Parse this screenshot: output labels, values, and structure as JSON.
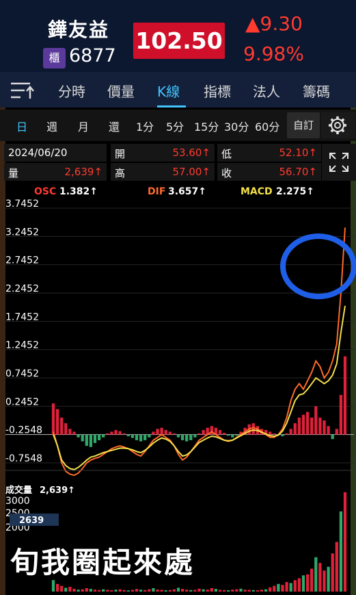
{
  "header": {
    "stock_name": "鏵友益",
    "market_badge": "櫃",
    "stock_code": "6877",
    "price": "102.50",
    "change": "▲9.30",
    "change_pct": "9.98%"
  },
  "tabs": [
    "分時",
    "價量",
    "K線",
    "指標",
    "法人",
    "籌碼"
  ],
  "active_tab": "K線",
  "periods": [
    "日",
    "週",
    "月",
    "還",
    "1分",
    "5分",
    "15分",
    "30分",
    "60分"
  ],
  "active_period": "日",
  "custom_label": "自訂",
  "info": {
    "date": "2024/06/20",
    "open_label": "開",
    "open_value": "53.60↑",
    "low_label": "低",
    "low_value": "52.10↑",
    "volume_label": "量",
    "volume_value": "2,639↑",
    "high_label": "高",
    "high_value": "57.00↑",
    "close_label": "收",
    "close_value": "56.70↑"
  },
  "legend": {
    "osc_label": "OSC",
    "osc_value": "1.382↑",
    "dif_label": "DIF",
    "dif_value": "3.657↑",
    "macd_label": "MACD",
    "macd_value": "2.275↑"
  },
  "colors": {
    "osc": "#ff3b30",
    "dif": "#ff6a2a",
    "macd": "#f3e04a",
    "hist_up": "#e0213a",
    "hist_down": "#2fa86a",
    "accent": "#41c5ff"
  },
  "chart_data": {
    "type": "bar",
    "y_ticks": [
      "3.7452",
      "3.2452",
      "2.7452",
      "2.2452",
      "1.7452",
      "1.2452",
      "0.7452",
      "0.2452",
      "-0.2548",
      "-0.7548"
    ],
    "ylim": [
      -0.7548,
      3.7452
    ],
    "series": [
      {
        "name": "OSC",
        "values": [
          0.55,
          0.45,
          0.3,
          0.2,
          0.1,
          0.05,
          -0.05,
          -0.12,
          -0.2,
          -0.22,
          -0.15,
          -0.1,
          -0.05,
          0.02,
          0.05,
          0.08,
          0.06,
          0.02,
          -0.03,
          -0.06,
          -0.1,
          -0.12,
          -0.1,
          -0.05,
          0.05,
          0.1,
          0.12,
          0.08,
          0.05,
          0.02,
          -0.05,
          -0.1,
          -0.12,
          -0.1,
          -0.05,
          0.02,
          0.08,
          0.12,
          0.15,
          0.12,
          0.08,
          0.03,
          -0.02,
          -0.05,
          -0.02,
          0.05,
          0.12,
          0.18,
          0.2,
          0.15,
          0.1,
          0.08,
          0.05,
          0.02,
          0.0,
          -0.03,
          0.02,
          0.1,
          0.2,
          0.3,
          0.35,
          0.4,
          0.3,
          0.5,
          0.3,
          0.25,
          0.15,
          -0.08,
          0.1,
          0.7,
          1.382
        ]
      },
      {
        "name": "DIF",
        "values": [
          0.05,
          -0.2,
          -0.5,
          -0.65,
          -0.7,
          -0.72,
          -0.68,
          -0.6,
          -0.5,
          -0.45,
          -0.42,
          -0.4,
          -0.35,
          -0.3,
          -0.25,
          -0.22,
          -0.2,
          -0.22,
          -0.25,
          -0.3,
          -0.35,
          -0.38,
          -0.3,
          -0.2,
          -0.1,
          -0.05,
          0.0,
          -0.05,
          -0.1,
          -0.2,
          -0.35,
          -0.45,
          -0.4,
          -0.3,
          -0.2,
          -0.1,
          -0.05,
          0.0,
          0.05,
          0.0,
          -0.05,
          -0.1,
          -0.12,
          -0.1,
          -0.05,
          0.0,
          0.05,
          0.1,
          0.12,
          0.1,
          0.05,
          0.0,
          -0.05,
          -0.05,
          0.0,
          0.1,
          0.3,
          0.6,
          0.8,
          0.9,
          0.8,
          0.95,
          1.1,
          1.3,
          1.2,
          1.0,
          1.1,
          1.3,
          1.6,
          2.5,
          3.657
        ]
      },
      {
        "name": "MACD",
        "values": [
          0.0,
          -0.2,
          -0.45,
          -0.55,
          -0.6,
          -0.62,
          -0.58,
          -0.52,
          -0.45,
          -0.4,
          -0.38,
          -0.35,
          -0.32,
          -0.3,
          -0.28,
          -0.26,
          -0.24,
          -0.24,
          -0.25,
          -0.27,
          -0.3,
          -0.32,
          -0.28,
          -0.22,
          -0.15,
          -0.1,
          -0.06,
          -0.08,
          -0.12,
          -0.2,
          -0.3,
          -0.38,
          -0.36,
          -0.3,
          -0.22,
          -0.14,
          -0.1,
          -0.06,
          -0.03,
          -0.04,
          -0.07,
          -0.1,
          -0.11,
          -0.1,
          -0.06,
          -0.02,
          0.02,
          0.06,
          0.08,
          0.07,
          0.04,
          0.01,
          -0.02,
          -0.03,
          -0.01,
          0.06,
          0.2,
          0.4,
          0.6,
          0.7,
          0.72,
          0.8,
          0.9,
          1.0,
          0.95,
          0.9,
          0.95,
          1.05,
          1.25,
          1.8,
          2.275
        ]
      }
    ]
  },
  "volume": {
    "label": "成交量",
    "value": "2,639↑",
    "y_ticks": [
      "3000",
      "2500",
      "2000"
    ],
    "badge": "2639"
  },
  "caption": "旬我圈起來處"
}
